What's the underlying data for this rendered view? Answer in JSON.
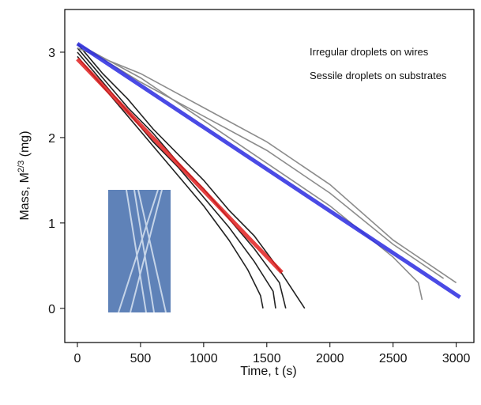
{
  "chart_data": {
    "type": "line",
    "xlabel": "Time, t (s)",
    "ylabel": [
      "Mass, M",
      "2/3",
      " (mg)"
    ],
    "xlim": [
      -100,
      3140
    ],
    "ylim": [
      -0.4,
      3.5
    ],
    "xticks": [
      0,
      500,
      1000,
      1500,
      2000,
      2500,
      3000
    ],
    "yticks": [
      0,
      1,
      2,
      3
    ],
    "series": [
      {
        "name": "Irregular droplets on wires",
        "color": "#222222",
        "x": [
          0,
          200,
          400,
          600,
          800,
          1000,
          1200,
          1350,
          1450,
          1470
        ],
        "values": [
          2.95,
          2.6,
          2.25,
          1.9,
          1.55,
          1.2,
          0.8,
          0.45,
          0.15,
          0
        ]
      },
      {
        "color": "#222222",
        "x": [
          0,
          200,
          400,
          600,
          800,
          1000,
          1200,
          1400,
          1550,
          1570
        ],
        "values": [
          3.0,
          2.65,
          2.3,
          1.95,
          1.65,
          1.3,
          0.95,
          0.55,
          0.2,
          0
        ]
      },
      {
        "color": "#222222",
        "x": [
          0,
          200,
          400,
          600,
          800,
          1000,
          1200,
          1400,
          1600,
          1650
        ],
        "values": [
          3.05,
          2.7,
          2.35,
          2.05,
          1.7,
          1.4,
          1.05,
          0.7,
          0.3,
          0
        ]
      },
      {
        "color": "#222222",
        "x": [
          0,
          200,
          400,
          600,
          800,
          1000,
          1200,
          1400,
          1600,
          1800
        ],
        "values": [
          3.1,
          2.75,
          2.45,
          2.1,
          1.8,
          1.5,
          1.15,
          0.85,
          0.45,
          0
        ]
      },
      {
        "name": "Sessile droplets on substrates",
        "color": "#8c8c8c",
        "x": [
          0,
          500,
          1000,
          1500,
          2000,
          2500,
          2700,
          2730
        ],
        "values": [
          3.1,
          2.7,
          2.2,
          1.7,
          1.2,
          0.6,
          0.3,
          0.1
        ]
      },
      {
        "color": "#8c8c8c",
        "x": [
          0,
          500,
          1000,
          1500,
          2000,
          2500,
          2900
        ],
        "values": [
          3.1,
          2.65,
          2.25,
          1.85,
          1.35,
          0.75,
          0.35
        ]
      },
      {
        "color": "#8c8c8c",
        "x": [
          0,
          500,
          1000,
          1500,
          2000,
          2500,
          3000
        ],
        "values": [
          3.05,
          2.75,
          2.35,
          1.95,
          1.45,
          0.8,
          0.3
        ]
      },
      {
        "color": "#e02020",
        "x": [
          0,
          1620
        ],
        "values": [
          2.92,
          0.42
        ]
      },
      {
        "color": "#2a2ae0",
        "x": [
          0,
          3030
        ],
        "values": [
          3.1,
          0.13
        ]
      }
    ]
  }
}
